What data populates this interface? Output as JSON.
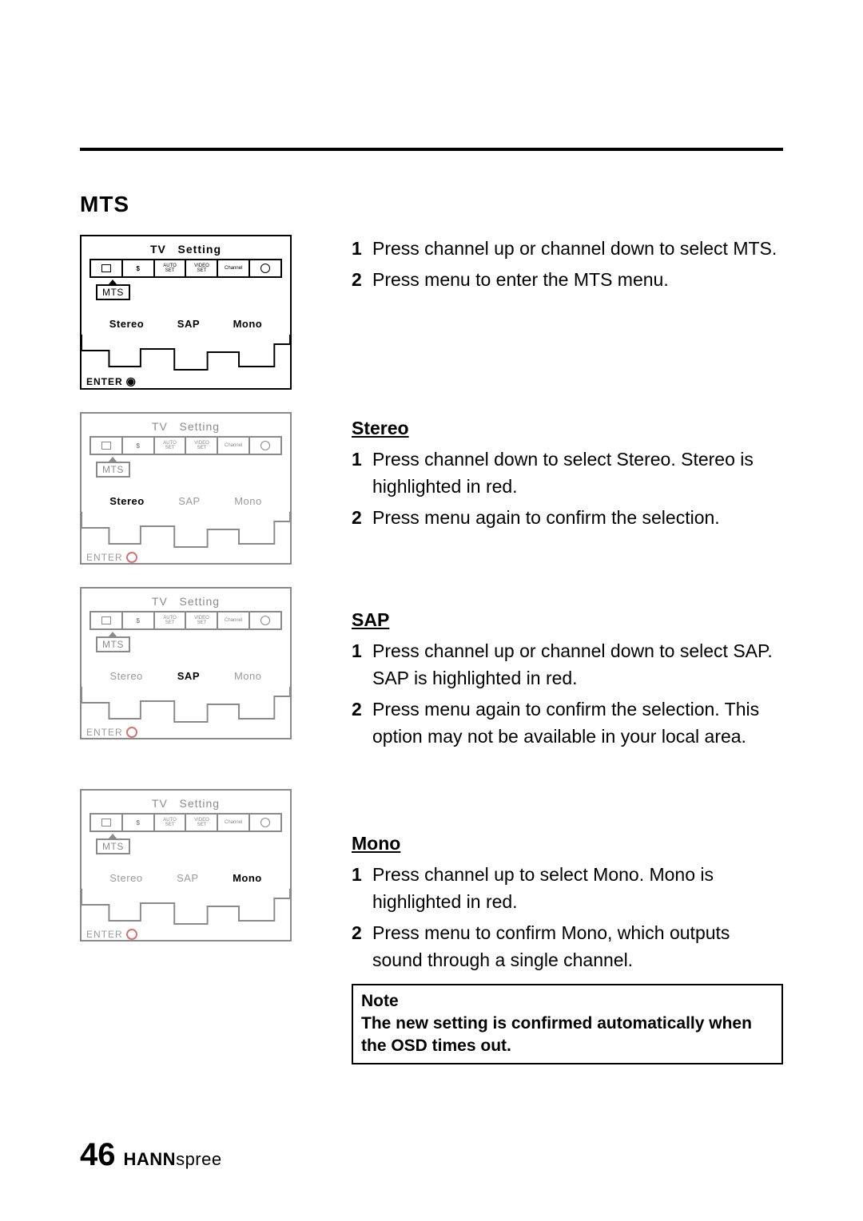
{
  "page": {
    "page_number": "46",
    "brand_bold": "HANN",
    "brand_light": "spree",
    "rule_color": "#000000",
    "background": "#ffffff"
  },
  "title": "MTS",
  "intro": {
    "steps": [
      "Press channel up or channel down to select MTS.",
      "Press menu to enter the MTS menu."
    ]
  },
  "sections": [
    {
      "heading": "Stereo",
      "steps": [
        "Press channel down to select Stereo. Stereo is highlighted in red.",
        "Press menu again to confirm the selection."
      ]
    },
    {
      "heading": "SAP",
      "steps": [
        "Press channel up or channel down to select SAP. SAP is highlighted in red.",
        "Press menu again to confirm the selection. This option may not be available in your local area."
      ]
    },
    {
      "heading": "Mono",
      "steps": [
        "Press channel up to select Mono. Mono is highlighted in red.",
        "Press menu to confirm Mono, which outputs sound through a single channel."
      ]
    }
  ],
  "note": {
    "label": "Note",
    "text": "The new setting is confirmed automatically when the OSD times out."
  },
  "osd_common": {
    "header_left": "TV",
    "header_right": "Setting",
    "mts_label": "MTS",
    "enter_label": "ENTER",
    "options": [
      "Stereo",
      "SAP",
      "Mono"
    ],
    "tab_icons": [
      "tv-icon",
      "dollar-icon",
      "auto-set-icon",
      "video-set-icon",
      "channel-icon",
      "globe-icon"
    ]
  },
  "diagrams": [
    {
      "style": "bold",
      "highlight": "all",
      "enter_variant": "dot"
    },
    {
      "style": "dim",
      "highlight": "Stereo",
      "enter_variant": "ring"
    },
    {
      "style": "dim",
      "highlight": "SAP",
      "enter_variant": "ring"
    },
    {
      "style": "dim",
      "highlight": "Mono",
      "enter_variant": "ring"
    }
  ],
  "colors": {
    "text": "#000000",
    "dim": "#8a8a8a",
    "highlight_accent": "#cc6666"
  }
}
